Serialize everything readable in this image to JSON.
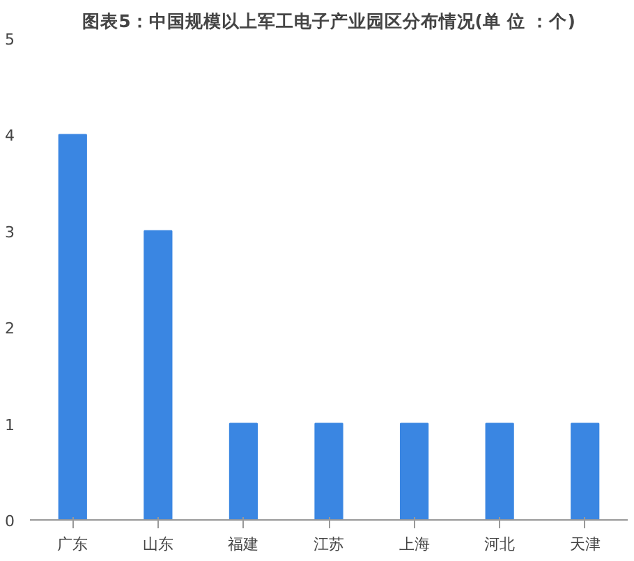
{
  "chart_data": {
    "type": "bar",
    "title": "图表5：中国规模以上军工电子产业园区分布情况(单 位 ：个)",
    "categories": [
      "广东",
      "山东",
      "福建",
      "江苏",
      "上海",
      "河北",
      "天津"
    ],
    "values": [
      4,
      3,
      1,
      1,
      1,
      1,
      1
    ],
    "color": "#3a86e2",
    "ylim": [
      0,
      5
    ],
    "yticks": [
      0,
      1,
      2,
      3,
      4,
      5
    ],
    "grid": false
  }
}
